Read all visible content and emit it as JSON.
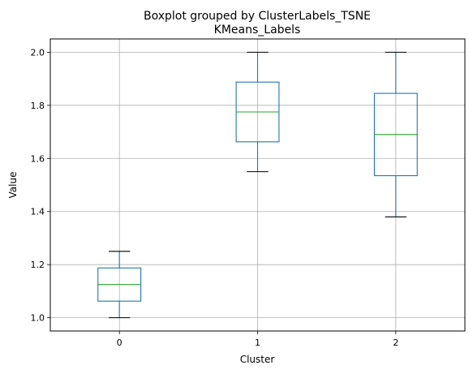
{
  "chart_data": {
    "type": "boxplot",
    "suptitle": "Boxplot grouped by ClusterLabels_TSNE",
    "title": "KMeans_Labels",
    "xlabel": "Cluster",
    "ylabel": "Value",
    "categories": [
      "0",
      "1",
      "2"
    ],
    "boxes": [
      {
        "category": "0",
        "whisker_low": 1.0,
        "q1": 1.0625,
        "median": 1.125,
        "q3": 1.1875,
        "whisker_high": 1.25
      },
      {
        "category": "1",
        "whisker_low": 1.55,
        "q1": 1.6625,
        "median": 1.775,
        "q3": 1.8875,
        "whisker_high": 2.0
      },
      {
        "category": "2",
        "whisker_low": 1.38,
        "q1": 1.535,
        "median": 1.69,
        "q3": 1.845,
        "whisker_high": 2.0
      }
    ],
    "ylim": [
      0.95,
      2.05
    ],
    "yticks": [
      1.0,
      1.2,
      1.4,
      1.6,
      1.8,
      2.0
    ],
    "ytick_labels": [
      "1.0",
      "1.2",
      "1.4",
      "1.6",
      "1.8",
      "2.0"
    ],
    "grid": true,
    "colors": {
      "box": "#1f77b4",
      "median": "#2ca02c",
      "cap": "#000000",
      "grid": "#b0b0b0"
    }
  }
}
